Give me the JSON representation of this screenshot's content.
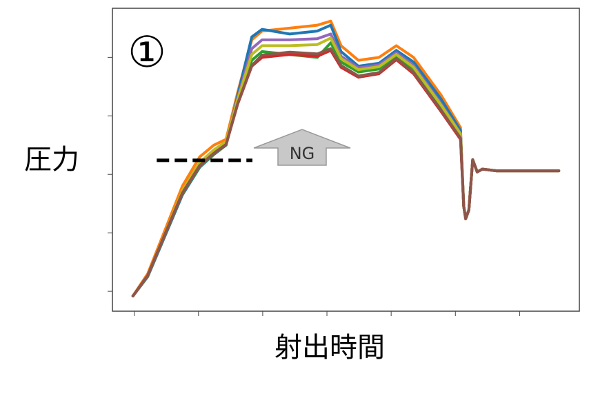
{
  "chart_data": {
    "type": "line",
    "label": "①",
    "y_label": "圧力",
    "x_label": "射出時間",
    "annotation": "NG",
    "x": [
      -0.02,
      0.21,
      0.48,
      0.75,
      1.02,
      1.24,
      1.43,
      1.61,
      1.83,
      1.99,
      2.42,
      2.85,
      3.06,
      3.22,
      3.49,
      3.81,
      4.08,
      4.35,
      4.78,
      5.08,
      5.13,
      5.16,
      5.21,
      5.27,
      5.34,
      5.42,
      5.64,
      6.61
    ],
    "series": [
      {
        "color": "#ff7f0e",
        "values": [
          -0.08,
          0.3,
          1.05,
          1.8,
          2.3,
          2.5,
          2.6,
          3.4,
          4.3,
          4.45,
          4.5,
          4.55,
          4.62,
          4.2,
          3.95,
          4.0,
          4.2,
          4.0,
          3.35,
          2.8,
          1.45,
          1.24,
          1.39,
          2.25,
          2.04,
          2.09,
          2.06,
          2.06
        ]
      },
      {
        "color": "#1f77b4",
        "values": [
          -0.08,
          0.25,
          0.95,
          1.65,
          2.12,
          2.34,
          2.5,
          3.35,
          4.35,
          4.48,
          4.4,
          4.45,
          4.55,
          4.1,
          3.85,
          3.9,
          4.12,
          3.92,
          3.28,
          2.75,
          1.45,
          1.24,
          1.39,
          2.25,
          2.04,
          2.09,
          2.06,
          2.06
        ]
      },
      {
        "color": "#9467bd",
        "values": [
          -0.08,
          0.26,
          0.97,
          1.7,
          2.18,
          2.4,
          2.55,
          3.3,
          4.15,
          4.3,
          4.3,
          4.32,
          4.4,
          4.02,
          3.82,
          3.87,
          4.08,
          3.86,
          3.2,
          2.7,
          1.45,
          1.24,
          1.39,
          2.25,
          2.04,
          2.09,
          2.06,
          2.06
        ]
      },
      {
        "color": "#2ca02c",
        "values": [
          -0.08,
          0.26,
          0.97,
          1.67,
          2.13,
          2.35,
          2.5,
          3.25,
          3.95,
          4.1,
          4.05,
          4.0,
          4.25,
          3.92,
          3.75,
          3.8,
          4.02,
          3.8,
          3.15,
          2.68,
          1.45,
          1.24,
          1.39,
          2.25,
          2.04,
          2.09,
          2.06,
          2.06
        ]
      },
      {
        "color": "#bcbd22",
        "values": [
          -0.08,
          0.27,
          0.99,
          1.72,
          2.2,
          2.42,
          2.56,
          3.28,
          4.05,
          4.2,
          4.2,
          4.22,
          4.33,
          3.98,
          3.79,
          3.84,
          4.05,
          3.83,
          3.18,
          2.69,
          1.45,
          1.24,
          1.39,
          2.25,
          2.04,
          2.09,
          2.06,
          2.06
        ]
      },
      {
        "color": "#d62728",
        "values": [
          -0.08,
          0.27,
          0.98,
          1.68,
          2.15,
          2.36,
          2.51,
          3.2,
          3.85,
          4.0,
          4.05,
          4.02,
          4.12,
          3.83,
          3.66,
          3.72,
          3.96,
          3.72,
          3.07,
          2.6,
          1.45,
          1.24,
          1.39,
          2.25,
          2.04,
          2.09,
          2.06,
          2.06
        ]
      },
      {
        "color": "#8c564b",
        "values": [
          -0.08,
          0.27,
          0.98,
          1.68,
          2.15,
          2.36,
          2.51,
          3.21,
          3.86,
          4.04,
          4.09,
          4.06,
          4.15,
          3.86,
          3.68,
          3.74,
          3.98,
          3.74,
          3.09,
          2.62,
          1.45,
          1.24,
          1.39,
          2.25,
          2.04,
          2.09,
          2.06,
          2.06
        ]
      }
    ],
    "threshold_line": {
      "y": 2.24,
      "x": [
        0.35,
        1.84
      ]
    },
    "xlim": [
      -0.34,
      6.93
    ],
    "ylim": [
      -0.34,
      4.84
    ],
    "xticks": [
      0,
      1,
      2,
      3,
      4,
      5,
      6
    ],
    "yticks": [
      0,
      1,
      2,
      3,
      4
    ]
  }
}
